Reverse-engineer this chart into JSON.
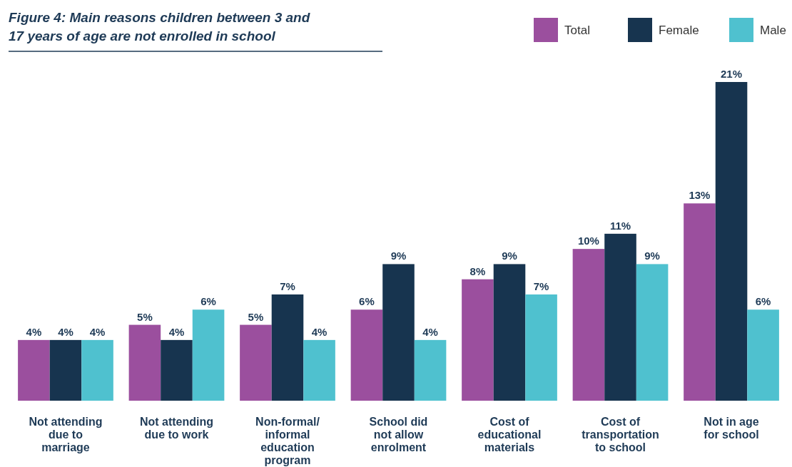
{
  "chart_data": {
    "type": "bar",
    "title": "Figure 4: Main reasons children between 3 and 17 years of age are not enrolled in school",
    "categories": [
      "Not attending due to marriage",
      "Not attending due to work",
      "Non-formal/ informal education program",
      "School did not allow enrolment",
      "Cost of educational materials",
      "Cost of transportation to school",
      "Not in age for school"
    ],
    "series": [
      {
        "name": "Total",
        "color": "#9b4f9e",
        "values": [
          4,
          5,
          5,
          6,
          8,
          10,
          13
        ],
        "value_labels": [
          "4%",
          "5%",
          "5%",
          "6%",
          "8%",
          "10%",
          "13%"
        ]
      },
      {
        "name": "Female",
        "color": "#17344f",
        "values": [
          4,
          4,
          7,
          9,
          9,
          11,
          21
        ],
        "value_labels": [
          "4%",
          "4%",
          "7%",
          "9%",
          "9%",
          "11%",
          "21%"
        ]
      },
      {
        "name": "Male",
        "color": "#4fc1cf",
        "values": [
          4,
          6,
          4,
          4,
          7,
          9,
          6
        ],
        "value_labels": [
          "4%",
          "6%",
          "4%",
          "4%",
          "7%",
          "9%",
          "6%"
        ]
      }
    ],
    "legend": "top right"
  }
}
